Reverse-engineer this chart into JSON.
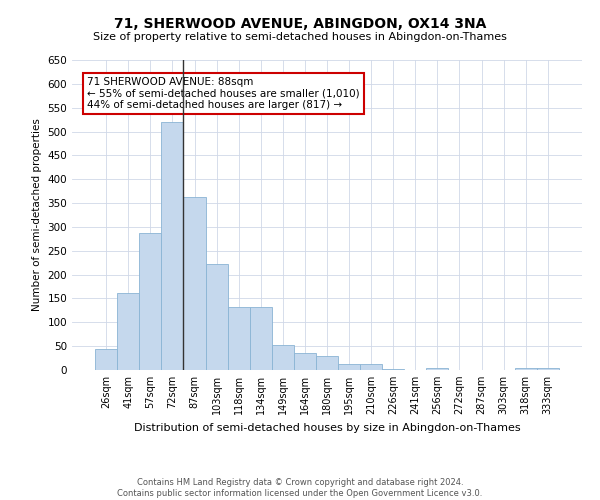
{
  "title": "71, SHERWOOD AVENUE, ABINGDON, OX14 3NA",
  "subtitle": "Size of property relative to semi-detached houses in Abingdon-on-Thames",
  "xlabel": "Distribution of semi-detached houses by size in Abingdon-on-Thames",
  "ylabel": "Number of semi-detached properties",
  "categories": [
    "26sqm",
    "41sqm",
    "57sqm",
    "72sqm",
    "87sqm",
    "103sqm",
    "118sqm",
    "134sqm",
    "149sqm",
    "164sqm",
    "180sqm",
    "195sqm",
    "210sqm",
    "226sqm",
    "241sqm",
    "256sqm",
    "272sqm",
    "287sqm",
    "303sqm",
    "318sqm",
    "333sqm"
  ],
  "values": [
    45,
    162,
    287,
    519,
    362,
    222,
    133,
    133,
    52,
    35,
    29,
    12,
    12,
    3,
    0,
    5,
    0,
    0,
    0,
    5,
    5
  ],
  "bar_color": "#c5d8ed",
  "bar_edge_color": "#8ab4d4",
  "highlight_bar_index": 4,
  "highlight_line_color": "#333333",
  "annotation_text_line1": "71 SHERWOOD AVENUE: 88sqm",
  "annotation_text_line2": "← 55% of semi-detached houses are smaller (1,010)",
  "annotation_text_line3": "44% of semi-detached houses are larger (817) →",
  "annotation_box_color": "#ffffff",
  "annotation_border_color": "#cc0000",
  "ylim": [
    0,
    650
  ],
  "yticks": [
    0,
    50,
    100,
    150,
    200,
    250,
    300,
    350,
    400,
    450,
    500,
    550,
    600,
    650
  ],
  "background_color": "#ffffff",
  "grid_color": "#d0d8e8",
  "footer_line1": "Contains HM Land Registry data © Crown copyright and database right 2024.",
  "footer_line2": "Contains public sector information licensed under the Open Government Licence v3.0."
}
